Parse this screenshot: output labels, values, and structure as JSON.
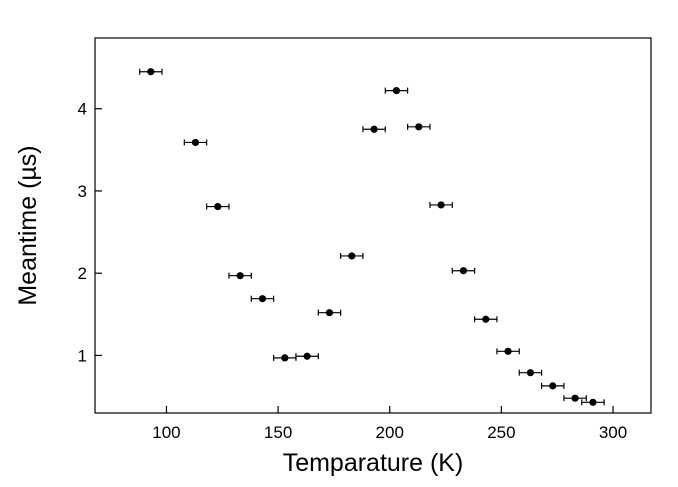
{
  "chart_data": {
    "type": "scatter",
    "title": "",
    "xlabel": "Temparature (K)",
    "ylabel": "Meantime (µs)",
    "xlim": [
      68,
      317
    ],
    "ylim": [
      0.3,
      4.86
    ],
    "xticks": [
      100,
      150,
      200,
      250,
      300
    ],
    "yticks": [
      1,
      2,
      3,
      4
    ],
    "grid": false,
    "legend": "none",
    "marker_color": "#000000",
    "series": [
      {
        "x": [
          93,
          113,
          123,
          133,
          143,
          153,
          163,
          173,
          183,
          193,
          203,
          213,
          223,
          233,
          243,
          253,
          263,
          273,
          283,
          291
        ],
        "y": [
          4.45,
          3.59,
          2.81,
          1.97,
          1.69,
          0.97,
          0.99,
          1.52,
          2.21,
          3.75,
          4.22,
          3.78,
          2.83,
          2.03,
          1.44,
          1.05,
          0.79,
          0.63,
          0.48,
          0.43
        ],
        "x_error": [
          5,
          5,
          5,
          5,
          5,
          5,
          5,
          5,
          5,
          5,
          5,
          5,
          5,
          5,
          5,
          5,
          5,
          5,
          5,
          5
        ]
      }
    ]
  }
}
